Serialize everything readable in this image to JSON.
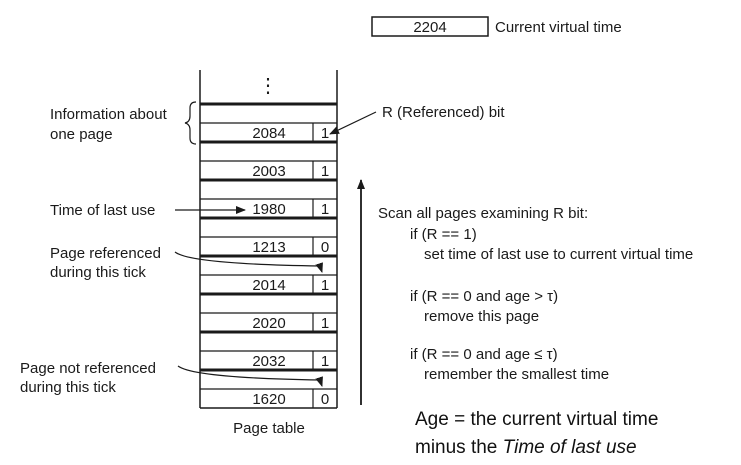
{
  "virtual_time": {
    "value": "2204",
    "label": "Current virtual time"
  },
  "page_table": {
    "ellipsis": "⋮",
    "caption": "Page table",
    "rows": [
      {
        "time": "2084",
        "r": "1"
      },
      {
        "time": "2003",
        "r": "1"
      },
      {
        "time": "1980",
        "r": "1"
      },
      {
        "time": "1213",
        "r": "0"
      },
      {
        "time": "2014",
        "r": "1"
      },
      {
        "time": "2020",
        "r": "1"
      },
      {
        "time": "2032",
        "r": "1"
      },
      {
        "time": "1620",
        "r": "0"
      }
    ]
  },
  "labels": {
    "info_line1": "Information about",
    "info_line2": "one page",
    "r_bit": "R (Referenced) bit",
    "time_last_use": "Time of last use",
    "referenced_line1": "Page referenced",
    "referenced_line2": "during this tick",
    "not_referenced_line1": "Page not referenced",
    "not_referenced_line2": "during this tick"
  },
  "algorithm": {
    "heading": "Scan all pages examining R bit:",
    "case1_cond": "if (R == 1)",
    "case1_action": "set time of last use to current virtual time",
    "case2_cond": "if (R == 0 and age > τ)",
    "case2_action": "remove this page",
    "case3_cond": "if (R == 0 and age ≤ τ)",
    "case3_action": "remember the smallest time"
  },
  "note": {
    "line1": "Age = the current virtual time",
    "line2_prefix": "minus the ",
    "line2_italic": "Time of last use"
  }
}
